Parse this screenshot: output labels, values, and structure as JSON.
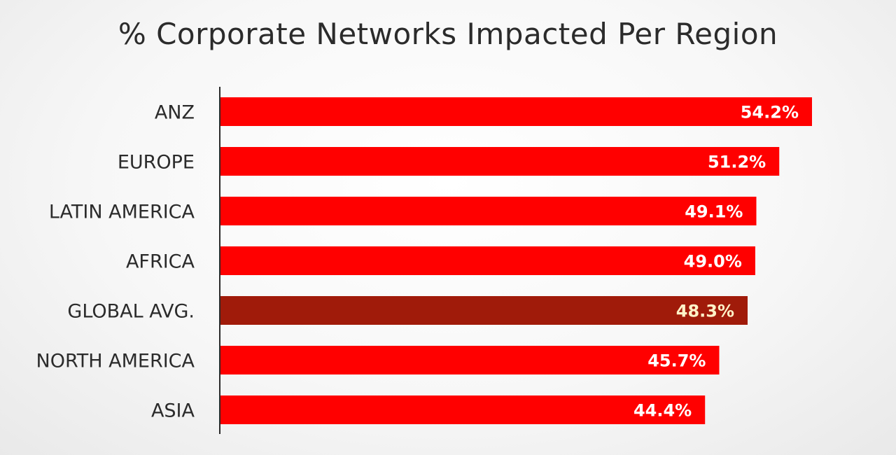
{
  "chart_data": {
    "type": "bar",
    "orientation": "horizontal",
    "title": "% Corporate Networks Impacted Per Region",
    "categories": [
      "ANZ",
      "EUROPE",
      "LATIN AMERICA",
      "AFRICA",
      "GLOBAL AVG.",
      "NORTH AMERICA",
      "ASIA"
    ],
    "values": [
      54.2,
      51.2,
      49.1,
      49.0,
      48.3,
      45.7,
      44.4
    ],
    "value_labels": [
      "54.2%",
      "51.2%",
      "49.1%",
      "49.0%",
      "48.3%",
      "45.7%",
      "44.4%"
    ],
    "unit": "%",
    "xlim": [
      0,
      54.2
    ],
    "grid": false,
    "highlighted_category": "GLOBAL AVG.",
    "colors": {
      "bar": "#ff0000",
      "highlight_bar": "#a01b0a",
      "value_text": "#ffffff",
      "highlight_value_text": "#fff2c8",
      "axis": "#2b2b2b"
    }
  }
}
